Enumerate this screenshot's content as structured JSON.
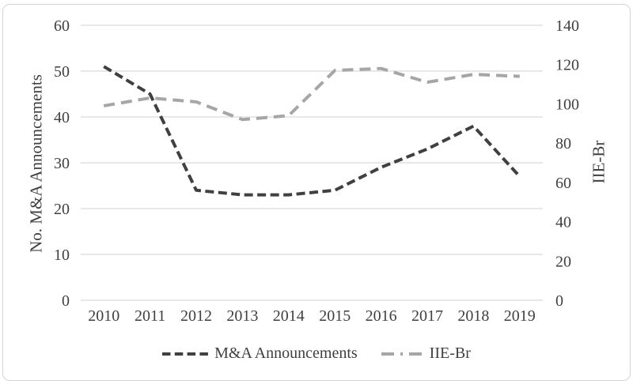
{
  "chart_data": {
    "type": "line",
    "title": "",
    "categories": [
      "2010",
      "2011",
      "2012",
      "2013",
      "2014",
      "2015",
      "2016",
      "2017",
      "2018",
      "2019"
    ],
    "series": [
      {
        "name": "M&A Announcements",
        "axis": "left",
        "color": "#404040",
        "dash_style": "short-dash",
        "values": [
          51,
          45,
          24,
          23,
          23,
          24,
          29,
          33,
          38,
          27
        ]
      },
      {
        "name": "IIE-Br",
        "axis": "right",
        "color": "#a6a6a6",
        "dash_style": "long-dash",
        "values": [
          99,
          103,
          101,
          92,
          94,
          117,
          118,
          111,
          115,
          114
        ]
      }
    ],
    "left_axis": {
      "label": "No. M&A Announcements",
      "min": 0,
      "max": 60,
      "ticks": [
        0,
        10,
        20,
        30,
        40,
        50,
        60
      ]
    },
    "right_axis": {
      "label": "IIE-Br",
      "min": 0,
      "max": 140,
      "ticks": [
        0,
        20,
        40,
        60,
        80,
        100,
        120,
        140
      ]
    },
    "legend": {
      "position": "bottom"
    },
    "grid": true,
    "colors": {
      "gridline": "#d9d9d9",
      "text": "#3f3f3f",
      "background": "#ffffff",
      "frame_border": "#d4d4d4"
    }
  }
}
